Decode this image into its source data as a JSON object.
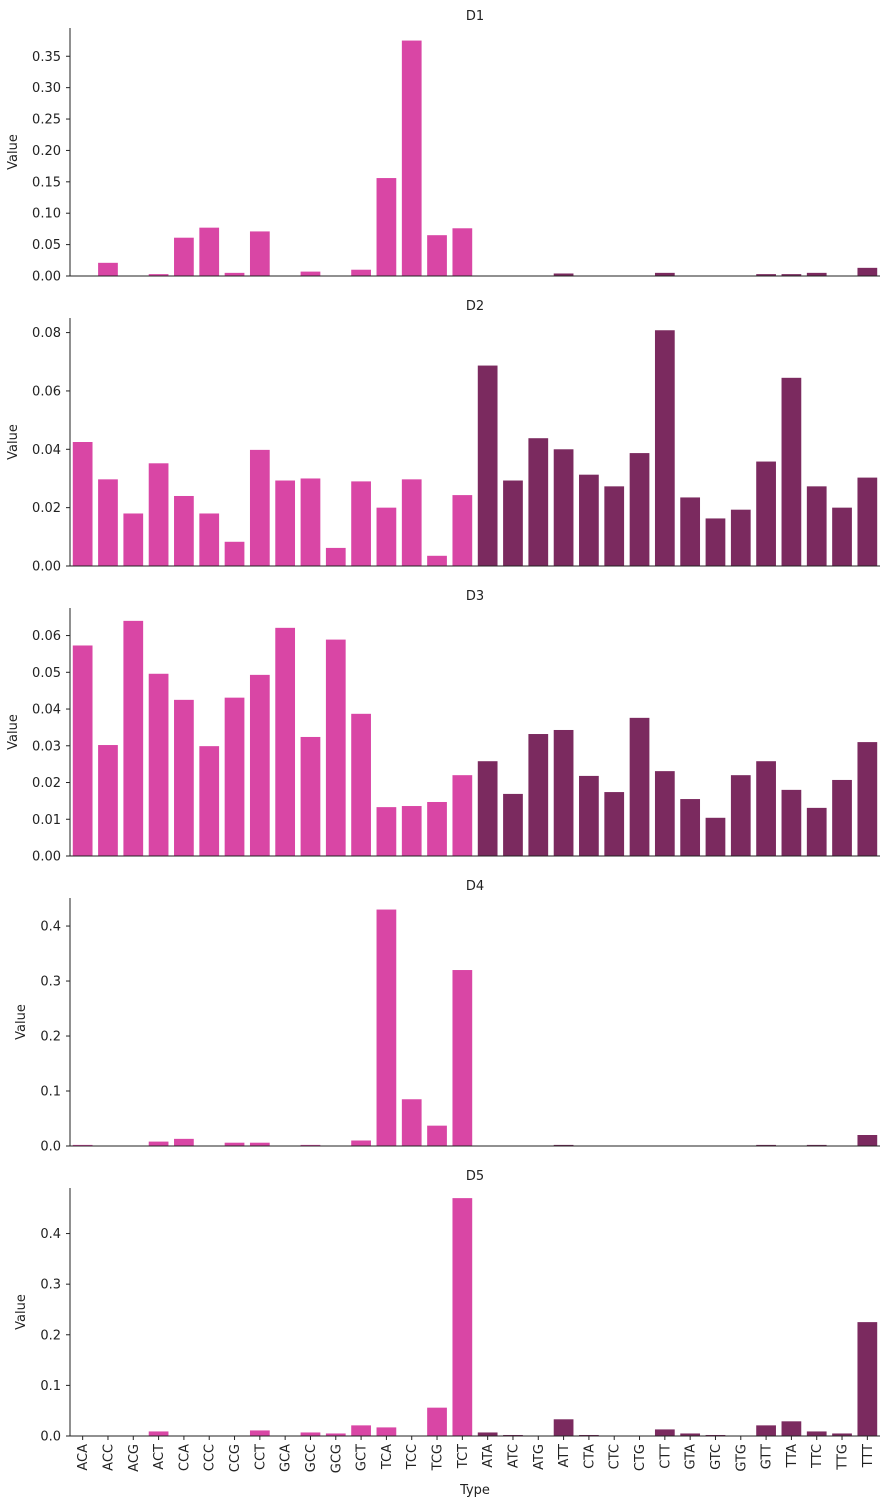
{
  "colors": {
    "group1": "#d946a5",
    "group2": "#7b2a5f",
    "axis": "#222222"
  },
  "xlabel": "Type",
  "ylabel": "Value",
  "chart_data": [
    {
      "type": "bar",
      "title": "D1",
      "xlabel": "",
      "ylabel": "Value",
      "ylim": [
        0,
        0.395
      ],
      "yticks": [
        "0.00",
        "0.05",
        "0.10",
        "0.15",
        "0.20",
        "0.25",
        "0.30",
        "0.35"
      ],
      "categories": [
        "ACA",
        "ACC",
        "ACG",
        "ACT",
        "CCA",
        "CCC",
        "CCG",
        "CCT",
        "GCA",
        "GCC",
        "GCG",
        "GCT",
        "TCA",
        "TCC",
        "TCG",
        "TCT",
        "ATA",
        "ATC",
        "ATG",
        "ATT",
        "CTA",
        "CTC",
        "CTG",
        "CTT",
        "GTA",
        "GTC",
        "GTG",
        "GTT",
        "TTA",
        "TTC",
        "TTG",
        "TTT"
      ],
      "values": [
        0,
        0.021,
        0,
        0.003,
        0.061,
        0.077,
        0.005,
        0.071,
        0,
        0.007,
        0,
        0.01,
        0.156,
        0.375,
        0.065,
        0.076,
        0,
        0,
        0,
        0.004,
        0,
        0,
        0,
        0.005,
        0,
        0,
        0,
        0.003,
        0.003,
        0.005,
        0,
        0.013
      ]
    },
    {
      "type": "bar",
      "title": "D2",
      "xlabel": "",
      "ylabel": "Value",
      "ylim": [
        0,
        0.085
      ],
      "yticks": [
        "0.00",
        "0.02",
        "0.04",
        "0.06",
        "0.08"
      ],
      "categories": [
        "ACA",
        "ACC",
        "ACG",
        "ACT",
        "CCA",
        "CCC",
        "CCG",
        "CCT",
        "GCA",
        "GCC",
        "GCG",
        "GCT",
        "TCA",
        "TCC",
        "TCG",
        "TCT",
        "ATA",
        "ATC",
        "ATG",
        "ATT",
        "CTA",
        "CTC",
        "CTG",
        "CTT",
        "GTA",
        "GTC",
        "GTG",
        "GTT",
        "TTA",
        "TTC",
        "TTG",
        "TTT"
      ],
      "values": [
        0.0425,
        0.0297,
        0.018,
        0.0352,
        0.024,
        0.018,
        0.0083,
        0.0398,
        0.0293,
        0.03,
        0.0062,
        0.029,
        0.02,
        0.0297,
        0.0035,
        0.0243,
        0.0687,
        0.0293,
        0.0438,
        0.04,
        0.0313,
        0.0273,
        0.0387,
        0.0808,
        0.0235,
        0.0163,
        0.0193,
        0.0358,
        0.0645,
        0.0273,
        0.02,
        0.0303
      ]
    },
    {
      "type": "bar",
      "title": "D3",
      "xlabel": "",
      "ylabel": "Value",
      "ylim": [
        0,
        0.0675
      ],
      "yticks": [
        "0.00",
        "0.01",
        "0.02",
        "0.03",
        "0.04",
        "0.05",
        "0.06"
      ],
      "categories": [
        "ACA",
        "ACC",
        "ACG",
        "ACT",
        "CCA",
        "CCC",
        "CCG",
        "CCT",
        "GCA",
        "GCC",
        "GCG",
        "GCT",
        "TCA",
        "TCC",
        "TCG",
        "TCT",
        "ATA",
        "ATC",
        "ATG",
        "ATT",
        "CTA",
        "CTC",
        "CTG",
        "CTT",
        "GTA",
        "GTC",
        "GTG",
        "GTT",
        "TTA",
        "TTC",
        "TTG",
        "TTT"
      ],
      "values": [
        0.0573,
        0.0302,
        0.064,
        0.0496,
        0.0425,
        0.0299,
        0.0431,
        0.0493,
        0.0621,
        0.0324,
        0.0589,
        0.0387,
        0.0133,
        0.0136,
        0.0147,
        0.022,
        0.0258,
        0.0169,
        0.0332,
        0.0343,
        0.0218,
        0.0174,
        0.0376,
        0.0231,
        0.0155,
        0.0104,
        0.022,
        0.0258,
        0.018,
        0.0131,
        0.0207,
        0.031
      ]
    },
    {
      "type": "bar",
      "title": "D4",
      "xlabel": "",
      "ylabel": "Value",
      "ylim": [
        0,
        0.451
      ],
      "yticks": [
        "0.0",
        "0.1",
        "0.2",
        "0.3",
        "0.4"
      ],
      "categories": [
        "ACA",
        "ACC",
        "ACG",
        "ACT",
        "CCA",
        "CCC",
        "CCG",
        "CCT",
        "GCA",
        "GCC",
        "GCG",
        "GCT",
        "TCA",
        "TCC",
        "TCG",
        "TCT",
        "ATA",
        "ATC",
        "ATG",
        "ATT",
        "CTA",
        "CTC",
        "CTG",
        "CTT",
        "GTA",
        "GTC",
        "GTG",
        "GTT",
        "TTA",
        "TTC",
        "TTG",
        "TTT"
      ],
      "values": [
        0.002,
        0,
        0,
        0.008,
        0.013,
        0,
        0.006,
        0.006,
        0,
        0.002,
        0,
        0.01,
        0.43,
        0.085,
        0.037,
        0.32,
        0,
        0,
        0,
        0.002,
        0,
        0,
        0,
        0,
        0,
        0,
        0,
        0.002,
        0,
        0.002,
        0,
        0.02
      ]
    },
    {
      "type": "bar",
      "title": "D5",
      "xlabel": "Type",
      "ylabel": "Value",
      "ylim": [
        0,
        0.49
      ],
      "yticks": [
        "0.0",
        "0.1",
        "0.2",
        "0.3",
        "0.4"
      ],
      "categories": [
        "ACA",
        "ACC",
        "ACG",
        "ACT",
        "CCA",
        "CCC",
        "CCG",
        "CCT",
        "GCA",
        "GCC",
        "GCG",
        "GCT",
        "TCA",
        "TCC",
        "TCG",
        "TCT",
        "ATA",
        "ATC",
        "ATG",
        "ATT",
        "CTA",
        "CTC",
        "CTG",
        "CTT",
        "GTA",
        "GTC",
        "GTG",
        "GTT",
        "TTA",
        "TTC",
        "TTG",
        "TTT"
      ],
      "values": [
        0,
        0,
        0,
        0.009,
        0,
        0,
        0,
        0.011,
        0,
        0.007,
        0.005,
        0.021,
        0.017,
        0,
        0.056,
        0.47,
        0.007,
        0.002,
        0,
        0.033,
        0.002,
        0,
        0,
        0.013,
        0.005,
        0.002,
        0,
        0.021,
        0.029,
        0.009,
        0.005,
        0.225
      ]
    }
  ]
}
